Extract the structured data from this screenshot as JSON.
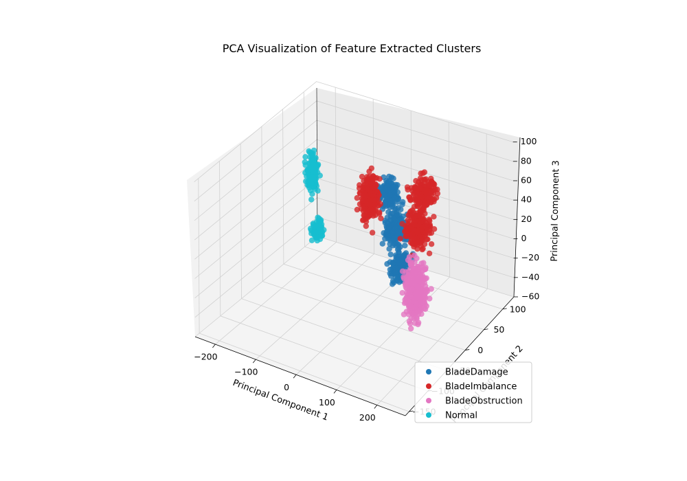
{
  "chart_data": {
    "type": "scatter",
    "projection": "3d",
    "title": "PCA Visualization of Feature Extracted Clusters",
    "xlabel": "Principal Component 1",
    "ylabel": "Principal Component 2",
    "zlabel": "Principal Component 3",
    "xlim": [
      -250,
      270
    ],
    "ylim": [
      -160,
      130
    ],
    "zlim": [
      -60,
      100
    ],
    "xticks": [
      -200,
      -100,
      0,
      100,
      200
    ],
    "xtick_labels": [
      "−200",
      "−100",
      "0",
      "100",
      "200"
    ],
    "yticks": [
      -150,
      -100,
      -50,
      0,
      50,
      100
    ],
    "ytick_labels": [
      "−150",
      "−100",
      "−50",
      "0",
      "50",
      "100"
    ],
    "zticks": [
      -60,
      -40,
      -20,
      0,
      20,
      40,
      60,
      80,
      100
    ],
    "ztick_labels": [
      "−60",
      "−40",
      "−20",
      "0",
      "20",
      "40",
      "60",
      "80",
      "100"
    ],
    "grid": true,
    "legend_position": "lower-right",
    "series": [
      {
        "name": "BladeDamage",
        "color": "#1f77b4",
        "clusters": [
          {
            "center": [
              -10,
              85,
              30
            ],
            "spread": [
              22,
              12,
              12
            ],
            "count": 140
          },
          {
            "center": [
              35,
              55,
              10
            ],
            "spread": [
              25,
              14,
              12
            ],
            "count": 170
          },
          {
            "center": [
              80,
              25,
              -10
            ],
            "spread": [
              22,
              14,
              12
            ],
            "count": 170
          }
        ]
      },
      {
        "name": "BladeImbalance",
        "color": "#d62728",
        "clusters": [
          {
            "center": [
              -40,
              65,
              30
            ],
            "spread": [
              16,
              14,
              20
            ],
            "count": 260
          },
          {
            "center": [
              75,
              90,
              40
            ],
            "spread": [
              25,
              18,
              12
            ],
            "count": 160
          },
          {
            "center": [
              105,
              45,
              25
            ],
            "spread": [
              22,
              18,
              16
            ],
            "count": 260
          }
        ]
      },
      {
        "name": "BladeObstruction",
        "color": "#e377c2",
        "clusters": [
          {
            "center": [
              165,
              -20,
              -5
            ],
            "spread": [
              18,
              16,
              25
            ],
            "count": 380
          }
        ]
      },
      {
        "name": "Normal",
        "color": "#17becf",
        "clusters": [
          {
            "center": [
              -175,
              50,
              45
            ],
            "spread": [
              9,
              10,
              17
            ],
            "count": 130
          },
          {
            "center": [
              -150,
              40,
              -8
            ],
            "spread": [
              9,
              9,
              9
            ],
            "count": 90
          }
        ]
      }
    ]
  }
}
